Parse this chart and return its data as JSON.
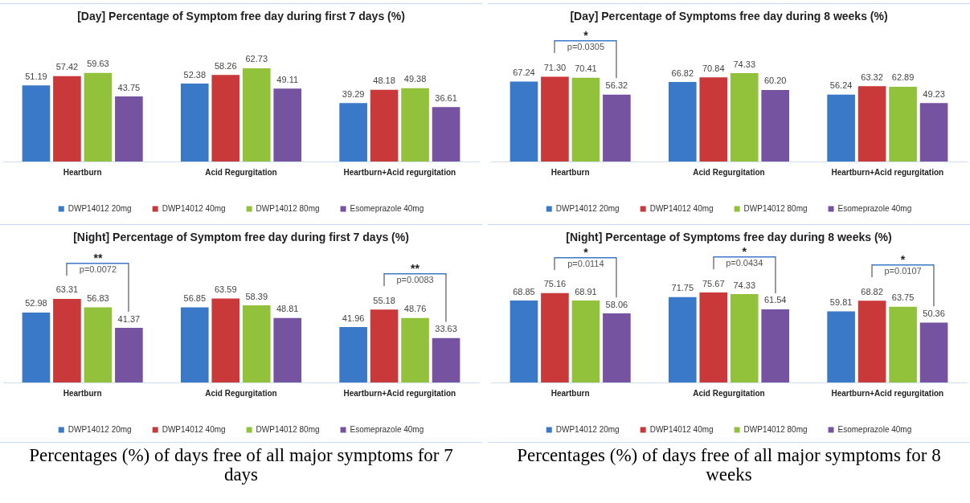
{
  "chart_data": [
    {
      "type": "bar",
      "title": "[Day]  Percentage of Symptom free day during first 7 days (%)",
      "categories": [
        "Heartburn",
        "Acid Regurgitation",
        "Heartburn+Acid regurgitation"
      ],
      "series": [
        {
          "name": "DWP14012 20mg",
          "color": "#3a78c8",
          "values": [
            51.19,
            52.38,
            39.29
          ]
        },
        {
          "name": "DWP14012 40mg",
          "color": "#c9393a",
          "values": [
            57.42,
            58.26,
            48.18
          ]
        },
        {
          "name": "DWP14012 80mg",
          "color": "#92c13c",
          "values": [
            59.63,
            62.73,
            49.38
          ]
        },
        {
          "name": "Esomeprazole 40mg",
          "color": "#7553a1",
          "values": [
            43.75,
            49.11,
            36.61
          ]
        }
      ],
      "data_labels": true,
      "legend": "bottom",
      "tick_labels": "x"
    },
    {
      "type": "bar",
      "title": "[Day]  Percentage of Symptoms free day during 8 weeks (%)",
      "categories": [
        "Heartburn",
        "Acid Regurgitation",
        "Heartburn+Acid regurgitation"
      ],
      "series": [
        {
          "name": "DWP14012 20mg",
          "color": "#3a78c8",
          "values": [
            67.24,
            66.82,
            56.24
          ],
          "value_labels": [
            "67.24",
            "66.82",
            "56.24"
          ]
        },
        {
          "name": "DWP14012 40mg",
          "color": "#c9393a",
          "values": [
            71.3,
            70.84,
            63.32
          ],
          "value_labels": [
            "71.30",
            "70.84",
            "63.32"
          ]
        },
        {
          "name": "DWP14012 80mg",
          "color": "#92c13c",
          "values": [
            70.41,
            74.33,
            62.89
          ],
          "value_labels": [
            "70.41",
            "74.33",
            "62.89"
          ]
        },
        {
          "name": "Esomeprazole 40mg",
          "color": "#7553a1",
          "values": [
            56.32,
            60.2,
            49.23
          ],
          "value_labels": [
            "56.32",
            "60.20",
            "49.23"
          ]
        }
      ],
      "annotations": [
        "*",
        "p=0.0305"
      ],
      "legend": "bottom",
      "tick_labels": "x"
    },
    {
      "type": "bar",
      "title": "[Night] Percentage of Symptom free day during first 7 days (%)",
      "categories": [
        "Heartburn",
        "Acid Regurgitation",
        "Heartburn+Acid regurgitation"
      ],
      "series": [
        {
          "name": "DWP14012 20mg",
          "color": "#3a78c8",
          "values": [
            52.98,
            56.85,
            41.96
          ]
        },
        {
          "name": "DWP14012 40mg",
          "color": "#c9393a",
          "values": [
            63.31,
            63.59,
            55.18
          ]
        },
        {
          "name": "DWP14012 80mg",
          "color": "#92c13c",
          "values": [
            56.83,
            58.39,
            48.76
          ]
        },
        {
          "name": "Esomeprazole 40mg",
          "color": "#7553a1",
          "values": [
            41.37,
            48.81,
            33.63
          ]
        }
      ],
      "annotations": [
        "**",
        "p=0.0072",
        "**",
        "p=0.0083",
        "Percentages (%) of days free of all major symptoms for 7 days"
      ],
      "data_labels": true,
      "legend": "bottom",
      "tick_labels": "x"
    },
    {
      "type": "bar",
      "title": "[Night] Percentage of Symptoms free day during 8 weeks (%)",
      "categories": [
        "Heartburn",
        "Acid Regurgitation",
        "Heartburn+Acid regurgitation"
      ],
      "series": [
        {
          "name": "DWP14012 20mg",
          "color": "#3a78c8",
          "values": [
            68.85,
            71.75,
            59.81
          ]
        },
        {
          "name": "DWP14012 40mg",
          "color": "#c9393a",
          "values": [
            75.16,
            75.67,
            68.82
          ]
        },
        {
          "name": "DWP14012 80mg",
          "color": "#92c13c",
          "values": [
            68.91,
            74.33,
            63.75
          ]
        },
        {
          "name": "Esomeprazole 40mg",
          "color": "#7553a1",
          "values": [
            58.06,
            61.54,
            50.36
          ]
        }
      ],
      "annotations": [
        "*",
        "p=0.0114",
        "*",
        "p=0.0434",
        "*",
        "p=0.0107",
        "Percentages (%) of days free of all major symptoms for 8 weeks"
      ],
      "data_labels": true,
      "legend": "bottom",
      "tick_labels": "x"
    }
  ]
}
